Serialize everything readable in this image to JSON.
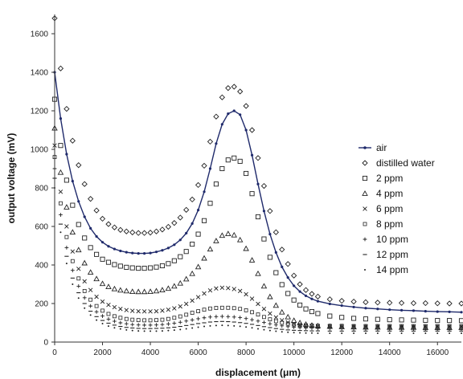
{
  "chart_data": {
    "type": "scatter",
    "xlabel": "displacement (μm)",
    "ylabel": "output voltage (mV)",
    "xlim": [
      0,
      17000
    ],
    "ylim": [
      0,
      1700
    ],
    "xticks": [
      0,
      2000,
      4000,
      6000,
      8000,
      10000,
      12000,
      14000,
      16000
    ],
    "yticks": [
      0,
      200,
      400,
      600,
      800,
      1000,
      1200,
      1400,
      1600
    ],
    "grid": false,
    "legend_position": "right",
    "x": [
      0,
      250,
      500,
      750,
      1000,
      1250,
      1500,
      1750,
      2000,
      2250,
      2500,
      2750,
      3000,
      3250,
      3500,
      3750,
      4000,
      4250,
      4500,
      4750,
      5000,
      5250,
      5500,
      5750,
      6000,
      6250,
      6500,
      6750,
      7000,
      7250,
      7500,
      7750,
      8000,
      8250,
      8500,
      8750,
      9000,
      9250,
      9500,
      9750,
      10000,
      10250,
      10500,
      10750,
      11000,
      11500,
      12000,
      12500,
      13000,
      13500,
      14000,
      14500,
      15000,
      15500,
      16000,
      16500,
      17000
    ],
    "series": [
      {
        "name": "air",
        "marker": "line-dot",
        "values": [
          1400,
          1160,
          975,
          835,
          730,
          650,
          590,
          548,
          518,
          497,
          483,
          473,
          466,
          462,
          460,
          460,
          462,
          468,
          476,
          488,
          505,
          530,
          565,
          615,
          685,
          780,
          900,
          1030,
          1130,
          1185,
          1200,
          1180,
          1100,
          970,
          820,
          680,
          560,
          465,
          390,
          335,
          292,
          262,
          240,
          224,
          212,
          198,
          189,
          182,
          176,
          172,
          168,
          165,
          163,
          160,
          158,
          157,
          155
        ]
      },
      {
        "name": "distilled water",
        "marker": "diamond",
        "values": [
          1680,
          1420,
          1210,
          1045,
          918,
          820,
          743,
          683,
          640,
          612,
          595,
          582,
          574,
          569,
          566,
          566,
          568,
          574,
          584,
          598,
          618,
          646,
          686,
          740,
          815,
          915,
          1040,
          1170,
          1270,
          1318,
          1325,
          1300,
          1225,
          1100,
          955,
          810,
          680,
          570,
          480,
          405,
          345,
          300,
          270,
          250,
          236,
          222,
          214,
          210,
          207,
          205,
          204,
          203,
          202,
          202,
          201,
          200,
          200
        ]
      },
      {
        "name": "2 ppm",
        "marker": "square",
        "values": [
          1260,
          1020,
          840,
          710,
          610,
          540,
          490,
          455,
          430,
          414,
          402,
          394,
          388,
          385,
          383,
          383,
          385,
          389,
          396,
          407,
          422,
          443,
          470,
          508,
          560,
          630,
          720,
          820,
          900,
          945,
          955,
          938,
          875,
          770,
          650,
          535,
          440,
          360,
          298,
          252,
          218,
          192,
          172,
          158,
          148,
          135,
          128,
          123,
          120,
          118,
          116,
          115,
          114,
          113,
          112,
          112,
          111
        ]
      },
      {
        "name": "4 ppm",
        "marker": "triangle",
        "values": [
          1110,
          880,
          700,
          570,
          478,
          410,
          362,
          328,
          303,
          287,
          276,
          269,
          265,
          262,
          261,
          261,
          262,
          265,
          270,
          278,
          290,
          305,
          327,
          355,
          390,
          435,
          482,
          525,
          553,
          562,
          555,
          530,
          485,
          425,
          355,
          290,
          235,
          190,
          155,
          130,
          112,
          100,
          92,
          87,
          84,
          81,
          79,
          78,
          77,
          77,
          76,
          76,
          76,
          75,
          75,
          75,
          75
        ]
      },
      {
        "name": "6 ppm",
        "marker": "x",
        "values": [
          1020,
          780,
          600,
          470,
          380,
          315,
          270,
          235,
          210,
          193,
          181,
          172,
          166,
          162,
          160,
          159,
          159,
          160,
          163,
          168,
          175,
          185,
          198,
          215,
          233,
          252,
          268,
          278,
          282,
          280,
          275,
          265,
          248,
          225,
          198,
          172,
          148,
          128,
          113,
          102,
          94,
          89,
          86,
          84,
          83,
          82,
          81,
          81,
          80,
          80,
          80,
          80,
          80,
          80,
          80,
          80,
          80
        ]
      },
      {
        "name": "8 ppm",
        "marker": "square-small",
        "values": [
          960,
          720,
          545,
          420,
          330,
          265,
          220,
          187,
          163,
          146,
          134,
          126,
          120,
          116,
          114,
          113,
          113,
          114,
          116,
          120,
          126,
          133,
          142,
          152,
          160,
          168,
          174,
          177,
          178,
          178,
          176,
          172,
          165,
          155,
          143,
          130,
          118,
          108,
          100,
          95,
          91,
          88,
          86,
          85,
          84,
          84,
          84,
          83,
          83,
          83,
          83,
          83,
          83,
          83,
          83,
          83,
          83
        ]
      },
      {
        "name": "10 ppm",
        "marker": "plus",
        "values": [
          900,
          660,
          490,
          372,
          290,
          230,
          187,
          157,
          135,
          119,
          108,
          100,
          95,
          91,
          89,
          88,
          88,
          89,
          91,
          94,
          98,
          103,
          109,
          115,
          121,
          126,
          130,
          132,
          133,
          132,
          130,
          127,
          122,
          116,
          109,
          102,
          95,
          89,
          84,
          80,
          77,
          75,
          73,
          72,
          71,
          70,
          70,
          69,
          69,
          69,
          69,
          69,
          69,
          69,
          69,
          69,
          69
        ]
      },
      {
        "name": "12 ppm",
        "marker": "dash",
        "values": [
          850,
          612,
          445,
          332,
          256,
          200,
          160,
          132,
          112,
          98,
          88,
          81,
          76,
          73,
          71,
          70,
          70,
          71,
          72,
          74,
          77,
          81,
          86,
          91,
          96,
          100,
          104,
          106,
          107,
          106,
          104,
          101,
          97,
          92,
          86,
          80,
          75,
          70,
          66,
          63,
          61,
          60,
          59,
          58,
          58,
          57,
          57,
          57,
          57,
          57,
          57,
          57,
          57,
          57,
          57,
          57,
          57
        ]
      },
      {
        "name": "14 ppm",
        "marker": "dot",
        "values": [
          800,
          570,
          408,
          300,
          228,
          176,
          140,
          114,
          96,
          83,
          74,
          68,
          63,
          60,
          58,
          57,
          57,
          57,
          58,
          60,
          62,
          65,
          69,
          73,
          77,
          81,
          84,
          86,
          87,
          86,
          84,
          82,
          78,
          74,
          69,
          64,
          60,
          56,
          53,
          51,
          49,
          48,
          47,
          47,
          46,
          46,
          46,
          46,
          46,
          46,
          46,
          46,
          46,
          46,
          46,
          46,
          46
        ]
      }
    ],
    "colors": {
      "air": "#1f2a6b",
      "markers": "#222222",
      "axis": "#333333"
    }
  }
}
